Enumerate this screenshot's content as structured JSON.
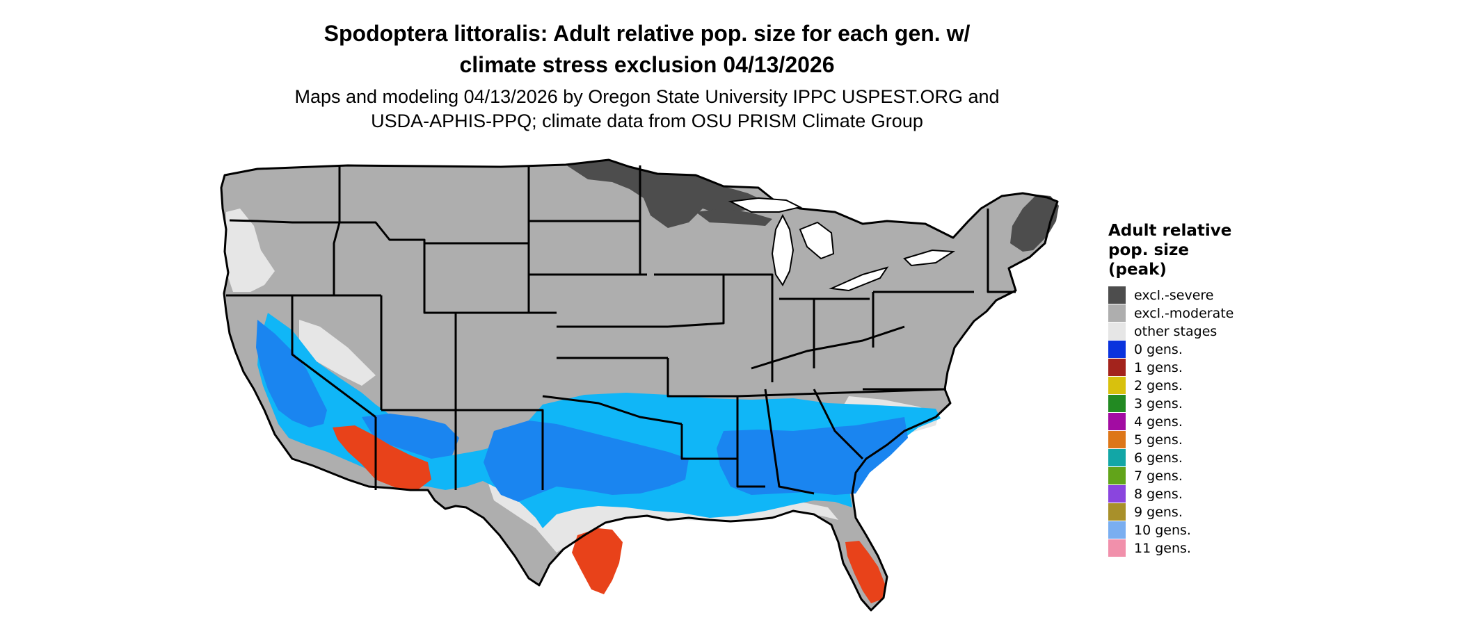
{
  "title_lines": [
    "Spodoptera littoralis: Adult relative pop. size for each gen. w/",
    "climate stress exclusion 04/13/2026"
  ],
  "subtitle_lines": [
    "Maps and modeling 04/13/2026 by Oregon State University IPPC USPEST.ORG and",
    "USDA-APHIS-PPQ; climate data from OSU PRISM Climate Group"
  ],
  "legend": {
    "title_lines": [
      "Adult relative",
      "pop. size",
      "(peak)"
    ],
    "items": [
      {
        "label": "excl.-severe",
        "color": "#4d4d4d"
      },
      {
        "label": "excl.-moderate",
        "color": "#aeaeae"
      },
      {
        "label": "other stages",
        "color": "#e6e6e6"
      },
      {
        "label": "0 gens.",
        "color": "#0a33dd"
      },
      {
        "label": "1 gens.",
        "color": "#a3231c"
      },
      {
        "label": "2 gens.",
        "color": "#d8c10d"
      },
      {
        "label": "3 gens.",
        "color": "#228a22"
      },
      {
        "label": "4 gens.",
        "color": "#a20ca2"
      },
      {
        "label": "5 gens.",
        "color": "#dd7618"
      },
      {
        "label": "6 gens.",
        "color": "#12a6a6"
      },
      {
        "label": "7 gens.",
        "color": "#62a41a"
      },
      {
        "label": "8 gens.",
        "color": "#8a45de"
      },
      {
        "label": "9 gens.",
        "color": "#a8902a"
      },
      {
        "label": "10 gens.",
        "color": "#7aaef0"
      },
      {
        "label": "11 gens.",
        "color": "#f190ab"
      }
    ]
  },
  "map_colors": {
    "severe": "#4d4d4d",
    "moderate": "#aeaeae",
    "other": "#e6e6e6",
    "blue_dark": "#1a85f0",
    "blue_light": "#10b6f7",
    "red_orange": "#e8421a",
    "border": "#000000"
  }
}
